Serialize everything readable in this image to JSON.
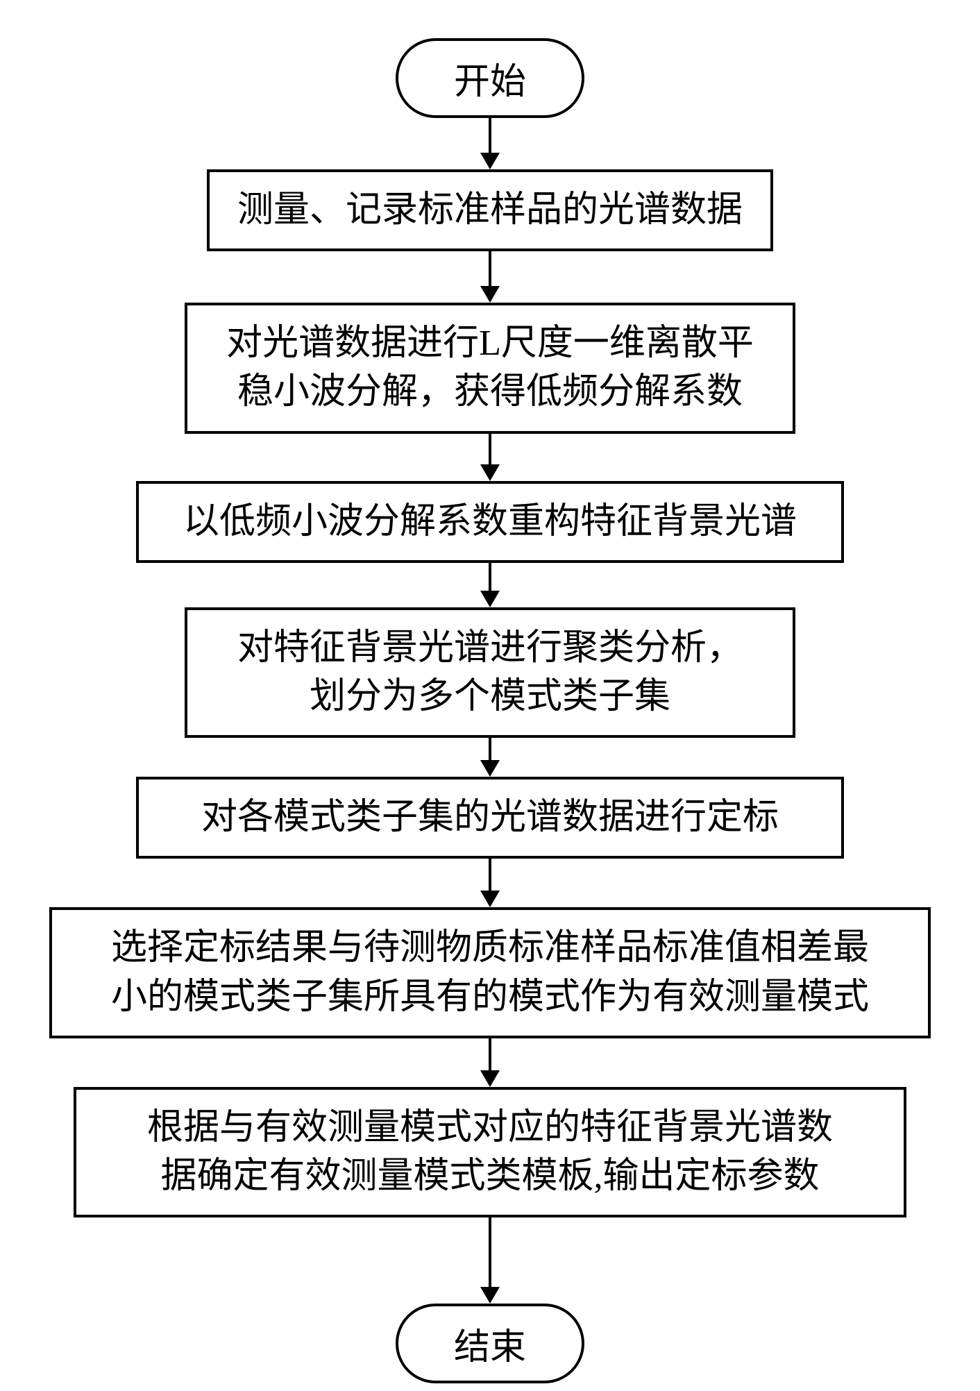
{
  "flowchart": {
    "type": "flowchart",
    "direction": "vertical",
    "background_color": "#ffffff",
    "border_color": "#000000",
    "border_width": 4,
    "text_color": "#000000",
    "font_size": 52,
    "font_family": "SimSun",
    "arrow": {
      "line_width": 4,
      "head_width": 28,
      "head_height": 24,
      "color": "#000000"
    },
    "nodes": [
      {
        "id": "start",
        "type": "terminal",
        "label": "开始",
        "shape": "rounded",
        "border_radius": 60
      },
      {
        "id": "step1",
        "type": "process",
        "label": "测量、记录标准样品的光谱数据",
        "shape": "rect"
      },
      {
        "id": "step2",
        "type": "process",
        "label_line1": "对光谱数据进行L尺度一维离散平",
        "label_line2": "稳小波分解，获得低频分解系数",
        "shape": "rect"
      },
      {
        "id": "step3",
        "type": "process",
        "label": "以低频小波分解系数重构特征背景光谱",
        "shape": "rect"
      },
      {
        "id": "step4",
        "type": "process",
        "label_line1": "对特征背景光谱进行聚类分析，",
        "label_line2": "划分为多个模式类子集",
        "shape": "rect"
      },
      {
        "id": "step5",
        "type": "process",
        "label": "对各模式类子集的光谱数据进行定标",
        "shape": "rect"
      },
      {
        "id": "step6",
        "type": "process",
        "label_line1": "选择定标结果与待测物质标准样品标准值相差最",
        "label_line2": "小的模式类子集所具有的模式作为有效测量模式",
        "shape": "rect"
      },
      {
        "id": "step7",
        "type": "process",
        "label_line1": "根据与有效测量模式对应的特征背景光谱数",
        "label_line2": "据确定有效测量模式类模板,输出定标参数",
        "shape": "rect"
      },
      {
        "id": "end",
        "type": "terminal",
        "label": "结束",
        "shape": "rounded",
        "border_radius": 60
      }
    ],
    "edges": [
      {
        "from": "start",
        "to": "step1",
        "length": 50
      },
      {
        "from": "step1",
        "to": "step2",
        "length": 50
      },
      {
        "from": "step2",
        "to": "step3",
        "length": 44
      },
      {
        "from": "step3",
        "to": "step4",
        "length": 40
      },
      {
        "from": "step4",
        "to": "step5",
        "length": 32
      },
      {
        "from": "step5",
        "to": "step6",
        "length": 46
      },
      {
        "from": "step6",
        "to": "step7",
        "length": 46
      },
      {
        "from": "step7",
        "to": "end",
        "length": 100
      }
    ]
  }
}
